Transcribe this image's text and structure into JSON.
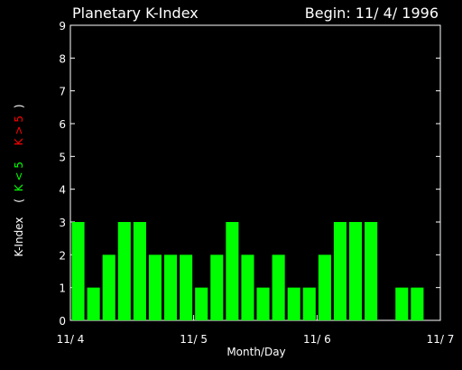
{
  "chart_data": {
    "type": "bar",
    "title": "Planetary K-Index",
    "subtitle": "Begin: 11/ 4/ 1996",
    "xlabel": "Month/Day",
    "ylabel": {
      "main": "K-Index",
      "open_paren": "(",
      "low": "K < 5",
      "high": "K > 5",
      "close_paren": ")"
    },
    "ylim": [
      0,
      9
    ],
    "yticks": [
      "0",
      "1",
      "2",
      "3",
      "4",
      "5",
      "6",
      "7",
      "8",
      "9"
    ],
    "xlim": [
      0,
      24
    ],
    "xticks": [
      {
        "pos": 0,
        "label": "11/ 4"
      },
      {
        "pos": 8,
        "label": "11/ 5"
      },
      {
        "pos": 16,
        "label": "11/ 6"
      },
      {
        "pos": 24,
        "label": "11/ 7"
      }
    ],
    "interval_hours": 3,
    "values": [
      3,
      1,
      2,
      3,
      3,
      2,
      2,
      2,
      1,
      2,
      3,
      2,
      1,
      2,
      1,
      1,
      2,
      3,
      3,
      3,
      0,
      1,
      1,
      0
    ],
    "colors": {
      "background": "#000000",
      "axes": "#ffffff",
      "low_bar": "#00ff00",
      "high_bar": "#ff0000",
      "text": "#ffffff"
    }
  }
}
